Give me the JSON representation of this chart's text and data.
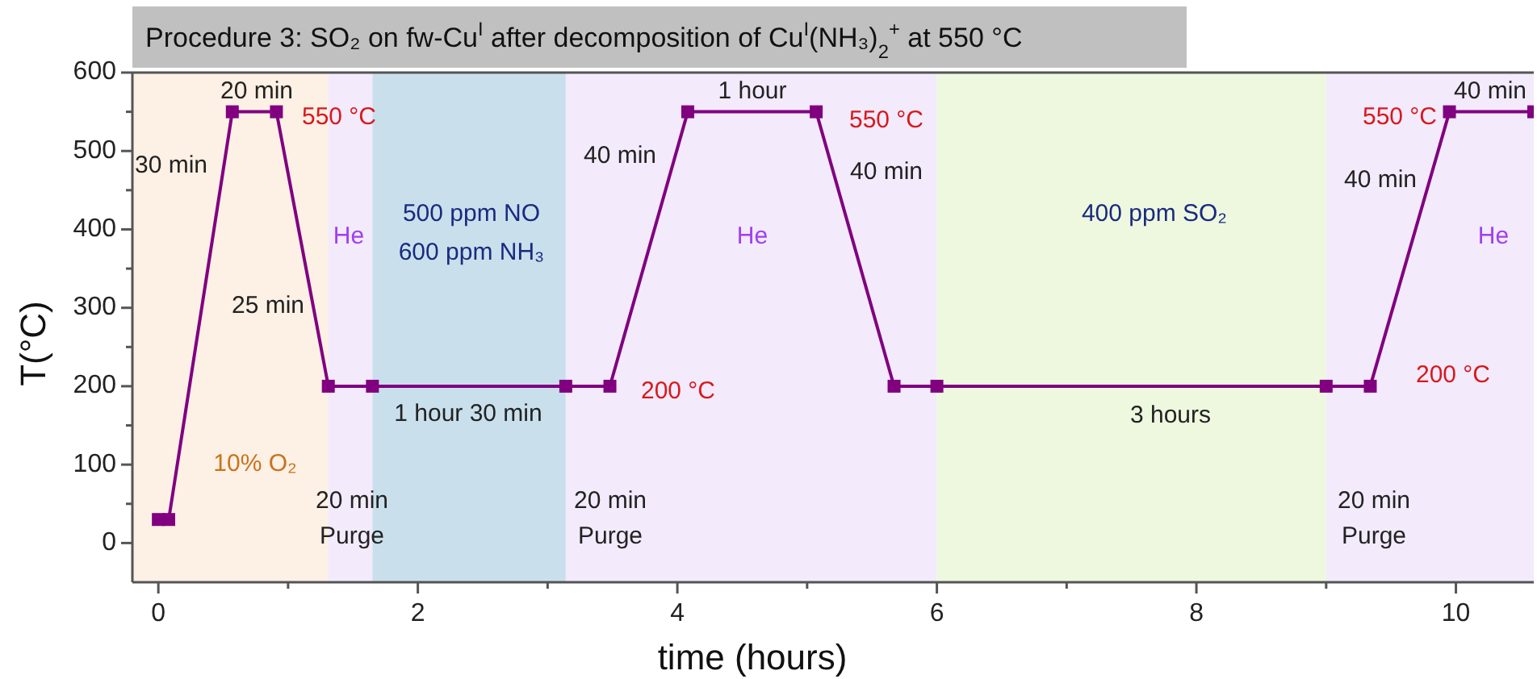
{
  "chart_data": {
    "type": "line",
    "title": "Procedure 3: SO₂ on fw-Cu$^{I}$ after decomposition of Cu$^{I}$(NH₃)$_{2}$$^{+}$ at 550 °C",
    "xlabel": "time (hours)",
    "ylabel": "T(°C)",
    "x": [
      0,
      0.08,
      0.57,
      0.91,
      1.31,
      1.65,
      3.14,
      3.48,
      4.08,
      5.07,
      5.67,
      6.0,
      9.0,
      9.34,
      9.95,
      10.6
    ],
    "series": [
      {
        "color": "#800080",
        "values": [
          30,
          30,
          550,
          550,
          200,
          200,
          200,
          200,
          550,
          550,
          200,
          200,
          200,
          200,
          550,
          550
        ]
      }
    ],
    "marker": "square",
    "line_style": "solid",
    "grid": false,
    "xlim": [
      -0.2,
      10.6
    ],
    "ylim": [
      -50,
      600
    ],
    "xticks": [
      0,
      {
        "value": 1,
        "label": null
      },
      2,
      {
        "value": 3,
        "label": null
      },
      4,
      {
        "value": 5,
        "label": null
      },
      6,
      {
        "value": 7,
        "label": null
      },
      8,
      {
        "value": 9,
        "label": null
      },
      10
    ],
    "yticks": [
      0,
      {
        "value": 50,
        "label": null
      },
      100,
      {
        "value": 150,
        "label": null
      },
      200,
      {
        "value": 250,
        "label": null
      },
      300,
      {
        "value": 350,
        "label": null
      },
      400,
      {
        "value": 450,
        "label": null
      },
      500,
      {
        "value": 550,
        "label": null
      },
      600
    ],
    "bands": [
      {
        "axis": "x",
        "from": -0.2,
        "to": 1.31,
        "color": "#fdf0e4"
      },
      {
        "axis": "x",
        "from": 1.31,
        "to": 1.65,
        "color": "#f3eafc"
      },
      {
        "axis": "x",
        "from": 1.65,
        "to": 3.14,
        "color": "#c9e0ec"
      },
      {
        "axis": "x",
        "from": 3.14,
        "to": 6.0,
        "color": "#f3eafc"
      },
      {
        "axis": "x",
        "from": 6.0,
        "to": 9.0,
        "color": "#eef8df"
      },
      {
        "axis": "x",
        "from": 9.0,
        "to": 10.6,
        "color": "#f3eafc"
      }
    ],
    "annotations": [
      "30 min",
      "20 min",
      "550 °C",
      "He",
      "500 ppm NO",
      "600 ppm NH₃",
      "25 min",
      "10% O₂",
      "20 min",
      "Purge",
      "1 hour 30 min",
      "200 °C",
      "20 min",
      "Purge",
      "40 min",
      "1 hour",
      "He",
      "550 °C",
      "40 min",
      "400 ppm SO₂",
      "3 hours",
      "20 min",
      "Purge",
      "550 °C",
      "40 min",
      "40 min",
      "He",
      "200 °C"
    ]
  }
}
